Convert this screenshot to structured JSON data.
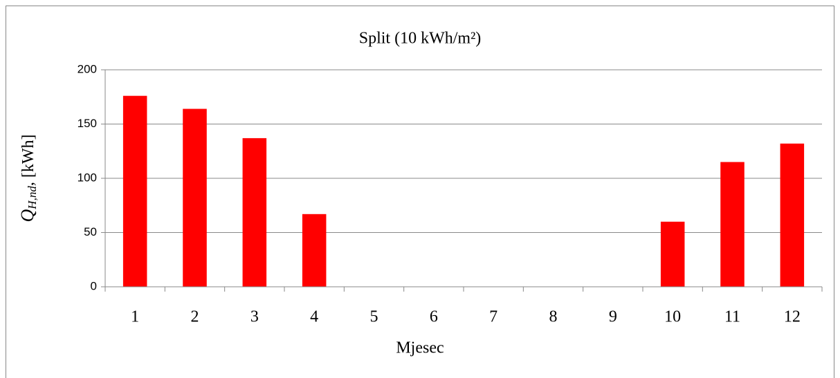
{
  "chart_data": {
    "type": "bar",
    "title": "Split (10 kWh/m²)",
    "y_label_symbol": "Q",
    "y_label_subscript": "H,nd",
    "y_label_unit": ", [kWh]",
    "x_label": "Mjesec",
    "categories": [
      "1",
      "2",
      "3",
      "4",
      "5",
      "6",
      "7",
      "8",
      "9",
      "10",
      "11",
      "12"
    ],
    "values": [
      176,
      164,
      137,
      67,
      0,
      0,
      0,
      0,
      0,
      60,
      115,
      132
    ],
    "color": "#ff0000",
    "ylim": [
      0,
      200
    ],
    "yticks": [
      0,
      50,
      100,
      150,
      200
    ],
    "grid": true
  }
}
